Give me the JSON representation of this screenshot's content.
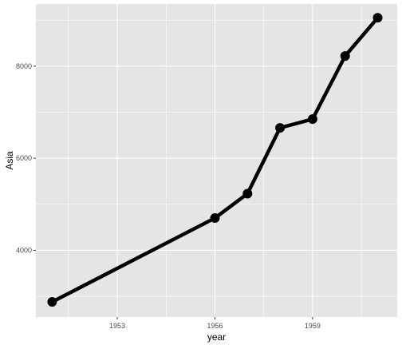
{
  "chart_data": {
    "type": "line",
    "xlabel": "year",
    "ylabel": "Asia",
    "x_ticks": [
      1953,
      1956,
      1959
    ],
    "y_ticks": [
      4000,
      6000,
      8000
    ],
    "xlim": [
      1950.5,
      1961.6
    ],
    "ylim": [
      2550,
      9350
    ],
    "grid": true,
    "legend": "none",
    "colors": {
      "panel": "#e5e5e5",
      "grid": "#ffffff",
      "line": "#000000",
      "text": "#4d4d4d"
    },
    "series": [
      {
        "x": [
          1951,
          1956,
          1957,
          1958,
          1959,
          1960,
          1961
        ],
        "y": [
          2880,
          4700,
          5230,
          6660,
          6850,
          8220,
          9050
        ]
      }
    ]
  }
}
